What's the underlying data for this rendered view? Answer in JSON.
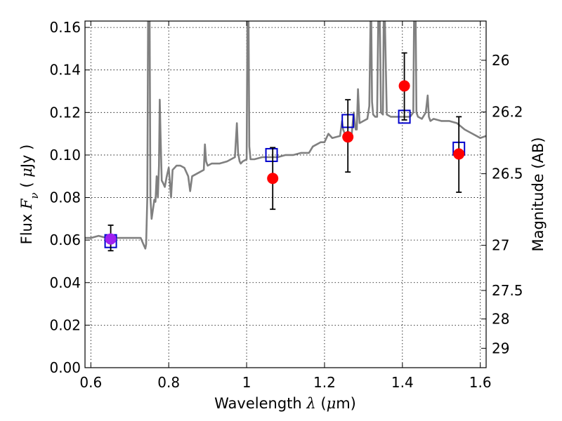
{
  "chart_data": {
    "type": "scatter",
    "title": "",
    "xlabel": "Wavelength  λ (μm)",
    "ylabel": "Flux  Fν  ( μJy )",
    "y2label": "Magnitude (AB)",
    "xlim": [
      0.585,
      1.615
    ],
    "ylim": [
      0.0,
      0.163
    ],
    "grid": true,
    "x_ticks": [
      0.6,
      0.8,
      1.0,
      1.2,
      1.4,
      1.6
    ],
    "x_tick_labels": [
      "0.6",
      "0.8",
      "1",
      "1.2",
      "1.4",
      "1.6"
    ],
    "y_ticks": [
      0.0,
      0.02,
      0.04,
      0.06,
      0.08,
      0.1,
      0.12,
      0.14,
      0.16
    ],
    "y_tick_labels": [
      "0.00",
      "0.02",
      "0.04",
      "0.06",
      "0.08",
      "0.10",
      "0.12",
      "0.14",
      "0.16"
    ],
    "mag_ticks": [
      26,
      26.2,
      26.5,
      27,
      27.5,
      28,
      29
    ],
    "mag_tick_labels": [
      "26",
      "26.2",
      "26.5",
      "27",
      "27.5",
      "28",
      "29"
    ],
    "mag_zero_point_ujy": 3631000000,
    "colors": {
      "spectrum": "#808080",
      "observed": "#ff0000",
      "model": "#0000cc",
      "errorbar": "#000000"
    },
    "series": [
      {
        "kind": "spectrum",
        "x": [
          0.585,
          0.6,
          0.62,
          0.64,
          0.66,
          0.68,
          0.7,
          0.72,
          0.728,
          0.735,
          0.74,
          0.742,
          0.745,
          0.747,
          0.749,
          0.751,
          0.753,
          0.756,
          0.76,
          0.763,
          0.766,
          0.769,
          0.772,
          0.775,
          0.777,
          0.779,
          0.782,
          0.785,
          0.79,
          0.795,
          0.8,
          0.803,
          0.806,
          0.81,
          0.82,
          0.83,
          0.84,
          0.85,
          0.855,
          0.86,
          0.87,
          0.88,
          0.89,
          0.893,
          0.896,
          0.9,
          0.91,
          0.93,
          0.95,
          0.97,
          0.975,
          0.978,
          0.982,
          0.985,
          0.99,
          1.0,
          1.002,
          1.005,
          1.007,
          1.01,
          1.02,
          1.04,
          1.06,
          1.07,
          1.08,
          1.1,
          1.12,
          1.14,
          1.16,
          1.17,
          1.18,
          1.19,
          1.2,
          1.21,
          1.22,
          1.24,
          1.245,
          1.248,
          1.252,
          1.26,
          1.27,
          1.275,
          1.28,
          1.283,
          1.286,
          1.29,
          1.3,
          1.31,
          1.315,
          1.318,
          1.32,
          1.322,
          1.325,
          1.33,
          1.335,
          1.338,
          1.342,
          1.345,
          1.35,
          1.352,
          1.355,
          1.36,
          1.37,
          1.38,
          1.4,
          1.42,
          1.428,
          1.43,
          1.432,
          1.434,
          1.436,
          1.44,
          1.45,
          1.46,
          1.465,
          1.468,
          1.472,
          1.48,
          1.5,
          1.52,
          1.54,
          1.56,
          1.58,
          1.6,
          1.615
        ],
        "y": [
          0.061,
          0.061,
          0.062,
          0.061,
          0.061,
          0.061,
          0.061,
          0.061,
          0.061,
          0.058,
          0.056,
          0.058,
          0.08,
          0.163,
          0.163,
          0.163,
          0.08,
          0.07,
          0.075,
          0.079,
          0.078,
          0.09,
          0.08,
          0.095,
          0.126,
          0.11,
          0.088,
          0.087,
          0.085,
          0.09,
          0.094,
          0.087,
          0.08,
          0.093,
          0.095,
          0.095,
          0.094,
          0.09,
          0.083,
          0.09,
          0.091,
          0.092,
          0.093,
          0.105,
          0.097,
          0.095,
          0.096,
          0.096,
          0.097,
          0.099,
          0.115,
          0.101,
          0.097,
          0.096,
          0.097,
          0.098,
          0.163,
          0.163,
          0.104,
          0.098,
          0.098,
          0.099,
          0.099,
          0.099,
          0.099,
          0.1,
          0.1,
          0.101,
          0.101,
          0.104,
          0.105,
          0.106,
          0.106,
          0.11,
          0.108,
          0.109,
          0.116,
          0.112,
          0.11,
          0.111,
          0.11,
          0.12,
          0.112,
          0.112,
          0.131,
          0.115,
          0.116,
          0.117,
          0.123,
          0.163,
          0.163,
          0.125,
          0.119,
          0.118,
          0.118,
          0.163,
          0.163,
          0.12,
          0.119,
          0.163,
          0.163,
          0.119,
          0.118,
          0.118,
          0.118,
          0.118,
          0.12,
          0.163,
          0.163,
          0.163,
          0.12,
          0.118,
          0.117,
          0.12,
          0.128,
          0.118,
          0.116,
          0.117,
          0.116,
          0.116,
          0.115,
          0.112,
          0.11,
          0.108,
          0.109
        ]
      },
      {
        "kind": "observed",
        "x": [
          0.651,
          1.067,
          1.26,
          1.405,
          1.545
        ],
        "y": [
          0.0605,
          0.089,
          0.1085,
          0.1325,
          0.1005
        ],
        "yerr_low": [
          0.0055,
          0.0145,
          0.0165,
          0.016,
          0.018
        ],
        "yerr_high": [
          0.0065,
          0.0145,
          0.0175,
          0.0155,
          0.0175
        ]
      },
      {
        "kind": "model",
        "x": [
          0.651,
          1.064,
          1.26,
          1.405,
          1.545
        ],
        "y": [
          0.0595,
          0.1,
          0.116,
          0.118,
          0.103
        ]
      }
    ]
  }
}
